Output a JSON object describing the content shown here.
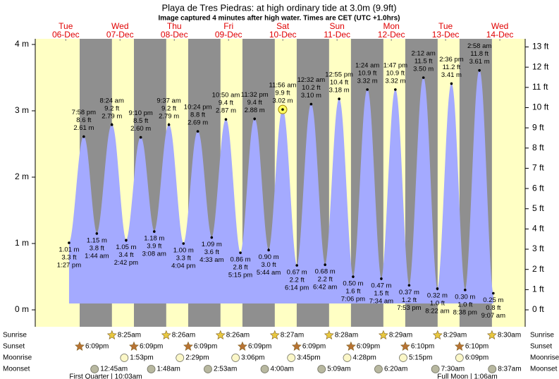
{
  "chart_data": {
    "type": "area",
    "title": "Playa de Tres Piedras: at high  ordinary tide at 3.0m (9.9ft)",
    "subtitle": "Image captured 4 minutes after high water. Times are CET (UTC +1.0hrs)",
    "color": "#a4aaff",
    "marker_index": 15,
    "x": [
      13.45,
      19.967,
      25.733,
      32.4,
      38.7,
      45.167,
      51.133,
      57.617,
      64.067,
      70.4,
      76.55,
      82.833,
      89.25,
      95.533,
      101.733,
      107.933,
      114.233,
      120.533,
      126.7,
      132.917,
      139.1,
      145.4,
      151.567,
      157.783,
      163.883,
      170.2,
      176.367,
      182.6,
      188.633,
      194.967,
      201.117
    ],
    "time_labels": [
      "1:27 pm",
      "7:58 pm",
      "1:44 am",
      "8:24 am",
      "2:42 pm",
      "9:10 pm",
      "3:08 am",
      "9:37 am",
      "4:04 pm",
      "10:24 pm",
      "4:33 am",
      "10:50 am",
      "5:15 pm",
      "11:32 pm",
      "5:44 am",
      "11:56 am",
      "6:14 pm",
      "12:32 am",
      "6:42 am",
      "12:55 pm",
      "7:06 pm",
      "1:24 am",
      "7:34 am",
      "1:47 pm",
      "7:53 pm",
      "2:12 am",
      "8:22 am",
      "2:36 pm",
      "8:38 pm",
      "2:58 am",
      "9:07 am"
    ],
    "series": [
      {
        "values": [
          1.01,
          2.61,
          1.15,
          2.79,
          1.05,
          2.6,
          1.18,
          2.79,
          1.0,
          2.69,
          1.09,
          2.87,
          0.86,
          2.88,
          0.9,
          3.02,
          0.67,
          3.1,
          0.68,
          3.18,
          0.5,
          3.32,
          0.47,
          3.32,
          0.37,
          3.5,
          0.32,
          3.41,
          0.3,
          3.61,
          0.25
        ],
        "value_labels": [
          "1.01 m",
          "2.61 m",
          "1.15 m",
          "2.79 m",
          "1.05 m",
          "2.60 m",
          "1.18 m",
          "2.79 m",
          "1.00 m",
          "2.69 m",
          "1.09 m",
          "2.87 m",
          "0.86 m",
          "2.88 m",
          "0.90 m",
          "3.02 m",
          "0.67 m",
          "3.10 m",
          "0.68 m",
          "3.18 m",
          "0.50 m",
          "3.32 m",
          "0.47 m",
          "3.32 m",
          "0.37 m",
          "3.50 m",
          "0.32 m",
          "3.41 m",
          "0.30 m",
          "3.61 m",
          "0.25 m"
        ]
      },
      {
        "axis": "y2",
        "values": [
          3.3,
          8.6,
          3.8,
          9.2,
          3.4,
          8.5,
          3.9,
          9.2,
          3.3,
          8.8,
          3.6,
          9.4,
          2.8,
          9.4,
          3.0,
          9.9,
          2.2,
          10.2,
          2.2,
          10.4,
          1.6,
          10.9,
          1.5,
          10.9,
          1.2,
          11.5,
          1.0,
          11.2,
          1.0,
          11.8,
          0.8
        ],
        "value_labels": [
          "3.3 ft",
          "8.6 ft",
          "3.8 ft",
          "9.2 ft",
          "3.4 ft",
          "8.5 ft",
          "3.9 ft",
          "9.2 ft",
          "3.3 ft",
          "8.8 ft",
          "3.6 ft",
          "9.4 ft",
          "2.8 ft",
          "9.4 ft",
          "3.0 ft",
          "9.9 ft",
          "2.2 ft",
          "10.2 ft",
          "2.2 ft",
          "10.4 ft",
          "1.6 ft",
          "10.9 ft",
          "1.5 ft",
          "10.9 ft",
          "1.2 ft",
          "11.5 ft",
          "1.0 ft",
          "11.2 ft",
          "1.0 ft",
          "11.8 ft",
          "0.8 ft"
        ]
      }
    ],
    "xlim": [
      -1.5,
      215.2
    ],
    "xticks": [
      {
        "value": 12,
        "label": "Tue"
      },
      {
        "value": 36,
        "label": "Wed"
      },
      {
        "value": 60,
        "label": "Thu"
      },
      {
        "value": 84,
        "label": "Fri"
      },
      {
        "value": 108,
        "label": "Sat"
      },
      {
        "value": 132,
        "label": "Sun"
      },
      {
        "value": 156,
        "label": "Mon"
      },
      {
        "value": 180,
        "label": "Tue"
      },
      {
        "value": 204,
        "label": "Wed"
      }
    ],
    "xtick_dates": [
      "06-Dec",
      "07-Dec",
      "08-Dec",
      "09-Dec",
      "10-Dec",
      "11-Dec",
      "12-Dec",
      "13-Dec",
      "14-Dec"
    ],
    "ylim": [
      -0.255,
      4.085
    ],
    "yticks": [
      {
        "value": 0,
        "label": "0 m"
      },
      {
        "value": 1,
        "label": "1 m"
      },
      {
        "value": 2,
        "label": "2 m"
      },
      {
        "value": 3,
        "label": "3 m"
      },
      {
        "value": 4,
        "label": "4 m"
      }
    ],
    "y2lim": [
      -0.837,
      13.402
    ],
    "y2ticks": [
      {
        "value": 0,
        "label": "0 ft"
      },
      {
        "value": 1,
        "label": "1 ft"
      },
      {
        "value": 2,
        "label": "2 ft"
      },
      {
        "value": 3,
        "label": "3 ft"
      },
      {
        "value": 4,
        "label": "4 ft"
      },
      {
        "value": 5,
        "label": "5 ft"
      },
      {
        "value": 6,
        "label": "6 ft"
      },
      {
        "value": 7,
        "label": "7 ft"
      },
      {
        "value": 8,
        "label": "8 ft"
      },
      {
        "value": 9,
        "label": "9 ft"
      },
      {
        "value": 10,
        "label": "10 ft"
      },
      {
        "value": 11,
        "label": "11 ft"
      },
      {
        "value": 12,
        "label": "12 ft"
      },
      {
        "value": 13,
        "label": "13 ft"
      }
    ],
    "events": [
      {
        "name": "Sunrise",
        "icon": "star",
        "color": "#e8c840",
        "x": [
          32.417,
          56.433,
          80.433,
          104.45,
          128.467,
          152.483,
          176.483,
          200.5
        ],
        "labels": [
          "8:25am",
          "8:26am",
          "8:26am",
          "8:27am",
          "8:28am",
          "8:29am",
          "8:29am",
          "8:30am"
        ]
      },
      {
        "name": "Sunset",
        "icon": "star",
        "color": "#b87333",
        "x": [
          18.15,
          42.15,
          66.15,
          90.15,
          114.15,
          138.15,
          162.167,
          186.167
        ],
        "labels": [
          "6:09pm",
          "6:09pm",
          "6:09pm",
          "6:09pm",
          "6:09pm",
          "6:09pm",
          "6:10pm",
          "6:10pm"
        ]
      },
      {
        "name": "Moonrise",
        "icon": "circle",
        "color": "#fbf7c8",
        "x": [
          37.883,
          62.483,
          87.1,
          111.75,
          136.467,
          161.25,
          186.15
        ],
        "labels": [
          "1:53pm",
          "2:29pm",
          "3:06pm",
          "3:45pm",
          "4:28pm",
          "5:15pm",
          "6:09pm"
        ]
      },
      {
        "name": "Moonset",
        "icon": "circle",
        "color": "#b8b8a0",
        "x": [
          24.75,
          49.8,
          74.883,
          100,
          125.15,
          150.333,
          175.5,
          200.617
        ],
        "labels": [
          "12:45am",
          "1:48am",
          "2:53am",
          "4:00am",
          "5:09am",
          "6:20am",
          "7:30am",
          "8:37am"
        ]
      }
    ],
    "notes": [
      "First Quarter | 10:03am",
      "Full Moon | 1:06am"
    ]
  }
}
